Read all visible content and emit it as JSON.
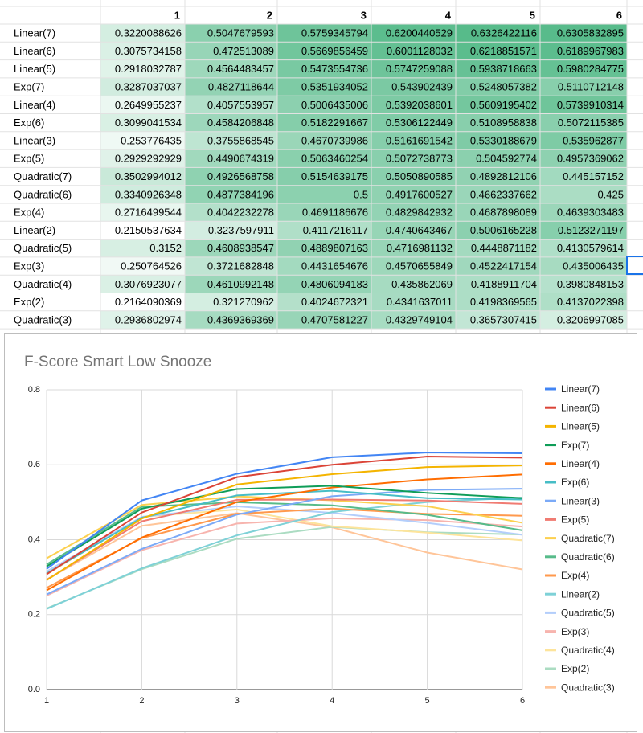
{
  "table": {
    "columns": [
      1,
      2,
      3,
      4,
      5,
      6
    ],
    "rows": [
      {
        "label": "Linear(7)",
        "values": [
          0.3220088626,
          0.5047679593,
          0.5759345794,
          0.6200440529,
          0.6326422116,
          0.6305832895
        ]
      },
      {
        "label": "Linear(6)",
        "values": [
          0.3075734158,
          0.472513089,
          0.5669856459,
          0.6001128032,
          0.6218851571,
          0.6189967983
        ]
      },
      {
        "label": "Linear(5)",
        "values": [
          0.2918032787,
          0.4564483457,
          0.5473554736,
          0.5747259088,
          0.5938718663,
          0.5980284775
        ]
      },
      {
        "label": "Exp(7)",
        "values": [
          0.3287037037,
          0.4827118644,
          0.5351934052,
          0.543902439,
          0.5248057382,
          0.5110712148
        ]
      },
      {
        "label": "Linear(4)",
        "values": [
          0.2649955237,
          0.4057553957,
          0.5006435006,
          0.5392038601,
          0.5609195402,
          0.5739910314
        ]
      },
      {
        "label": "Exp(6)",
        "values": [
          0.3099041534,
          0.4584206848,
          0.5182291667,
          0.5306122449,
          0.5108958838,
          0.5072115385
        ]
      },
      {
        "label": "Linear(3)",
        "values": [
          0.253776435,
          0.3755868545,
          0.4670739986,
          0.5161691542,
          0.5330188679,
          0.535962877
        ]
      },
      {
        "label": "Exp(5)",
        "values": [
          0.2929292929,
          0.4490674319,
          0.5063460254,
          0.5072738773,
          0.504592774,
          0.4957369062
        ]
      },
      {
        "label": "Quadratic(7)",
        "values": [
          0.3502994012,
          0.4926568758,
          0.5154639175,
          0.5050890585,
          0.4892812106,
          0.445157152
        ]
      },
      {
        "label": "Quadratic(6)",
        "values": [
          0.3340926348,
          0.4877384196,
          0.5,
          0.4917600527,
          0.4662337662,
          0.425
        ]
      },
      {
        "label": "Exp(4)",
        "values": [
          0.2716499544,
          0.4042232278,
          0.4691186676,
          0.4829842932,
          0.4687898089,
          0.4639303483
        ]
      },
      {
        "label": "Linear(2)",
        "values": [
          0.2150537634,
          0.3237597911,
          0.4117216117,
          0.4740643467,
          0.5006165228,
          0.5123271197
        ]
      },
      {
        "label": "Quadratic(5)",
        "values": [
          0.3152,
          0.4608938547,
          0.4889807163,
          0.4716981132,
          0.4448871182,
          0.4130579614
        ]
      },
      {
        "label": "Exp(3)",
        "values": [
          0.250764526,
          0.3721682848,
          0.4431654676,
          0.4570655849,
          0.4522417154,
          0.435006435
        ]
      },
      {
        "label": "Quadratic(4)",
        "values": [
          0.3076923077,
          0.4610992148,
          0.4806094183,
          0.435862069,
          0.4188911704,
          0.3980848153
        ]
      },
      {
        "label": "Exp(2)",
        "values": [
          0.2164090369,
          0.321270962,
          0.4024672321,
          0.4341637011,
          0.4198369565,
          0.4137022398
        ]
      },
      {
        "label": "Quadratic(3)",
        "values": [
          0.2936802974,
          0.4369369369,
          0.4707581227,
          0.4329749104,
          0.3657307415,
          0.3206997085
        ]
      }
    ]
  },
  "chart_data": {
    "type": "line",
    "title": "F-Score Smart Low Snooze",
    "x": [
      1,
      2,
      3,
      4,
      5,
      6
    ],
    "xlim": [
      1,
      6
    ],
    "xticks": [
      1,
      2,
      3,
      4,
      5,
      6
    ],
    "ylim": [
      0,
      0.8
    ],
    "yticks": [
      {
        "value": 0,
        "label": "0.0"
      },
      0.2,
      0.4,
      0.6,
      0.8
    ],
    "grid": true,
    "legend": "right",
    "series": [
      {
        "name": "Linear(7)",
        "color": "#4285f4",
        "values": [
          0.3220088626,
          0.5047679593,
          0.5759345794,
          0.6200440529,
          0.6326422116,
          0.6305832895
        ]
      },
      {
        "name": "Linear(6)",
        "color": "#db4437",
        "values": [
          0.3075734158,
          0.472513089,
          0.5669856459,
          0.6001128032,
          0.6218851571,
          0.6189967983
        ]
      },
      {
        "name": "Linear(5)",
        "color": "#f4b400",
        "values": [
          0.2918032787,
          0.4564483457,
          0.5473554736,
          0.5747259088,
          0.5938718663,
          0.5980284775
        ]
      },
      {
        "name": "Exp(7)",
        "color": "#0f9d58",
        "values": [
          0.3287037037,
          0.4827118644,
          0.5351934052,
          0.543902439,
          0.5248057382,
          0.5110712148
        ]
      },
      {
        "name": "Linear(4)",
        "color": "#ff6d01",
        "values": [
          0.2649955237,
          0.4057553957,
          0.5006435006,
          0.5392038601,
          0.5609195402,
          0.5739910314
        ]
      },
      {
        "name": "Exp(6)",
        "color": "#46bdc6",
        "values": [
          0.3099041534,
          0.4584206848,
          0.5182291667,
          0.5306122449,
          0.5108958838,
          0.5072115385
        ]
      },
      {
        "name": "Linear(3)",
        "color": "#7baaf7",
        "values": [
          0.253776435,
          0.3755868545,
          0.4670739986,
          0.5161691542,
          0.5330188679,
          0.535962877
        ]
      },
      {
        "name": "Exp(5)",
        "color": "#f07b72",
        "values": [
          0.2929292929,
          0.4490674319,
          0.5063460254,
          0.5072738773,
          0.504592774,
          0.4957369062
        ]
      },
      {
        "name": "Quadratic(7)",
        "color": "#fcd04f",
        "values": [
          0.3502994012,
          0.4926568758,
          0.5154639175,
          0.5050890585,
          0.4892812106,
          0.445157152
        ]
      },
      {
        "name": "Quadratic(6)",
        "color": "#57bb8a",
        "values": [
          0.3340926348,
          0.4877384196,
          0.5,
          0.4917600527,
          0.4662337662,
          0.425
        ]
      },
      {
        "name": "Exp(4)",
        "color": "#ff994d",
        "values": [
          0.2716499544,
          0.4042232278,
          0.4691186676,
          0.4829842932,
          0.4687898089,
          0.4639303483
        ]
      },
      {
        "name": "Linear(2)",
        "color": "#7ed1d7",
        "values": [
          0.2150537634,
          0.3237597911,
          0.4117216117,
          0.4740643467,
          0.5006165228,
          0.5123271197
        ]
      },
      {
        "name": "Quadratic(5)",
        "color": "#b3cefb",
        "values": [
          0.3152,
          0.4608938547,
          0.4889807163,
          0.4716981132,
          0.4448871182,
          0.4130579614
        ]
      },
      {
        "name": "Exp(3)",
        "color": "#f7b4ae",
        "values": [
          0.250764526,
          0.3721682848,
          0.4431654676,
          0.4570655849,
          0.4522417154,
          0.435006435
        ]
      },
      {
        "name": "Quadratic(4)",
        "color": "#fde49b",
        "values": [
          0.3076923077,
          0.4610992148,
          0.4806094183,
          0.435862069,
          0.4188911704,
          0.3980848153
        ]
      },
      {
        "name": "Exp(2)",
        "color": "#abdcc2",
        "values": [
          0.2164090369,
          0.321270962,
          0.4024672321,
          0.4341637011,
          0.4198369565,
          0.4137022398
        ]
      },
      {
        "name": "Quadratic(3)",
        "color": "#ffc599",
        "values": [
          0.2936802974,
          0.4369369369,
          0.4707581227,
          0.4329749104,
          0.3657307415,
          0.3206997085
        ]
      }
    ]
  }
}
